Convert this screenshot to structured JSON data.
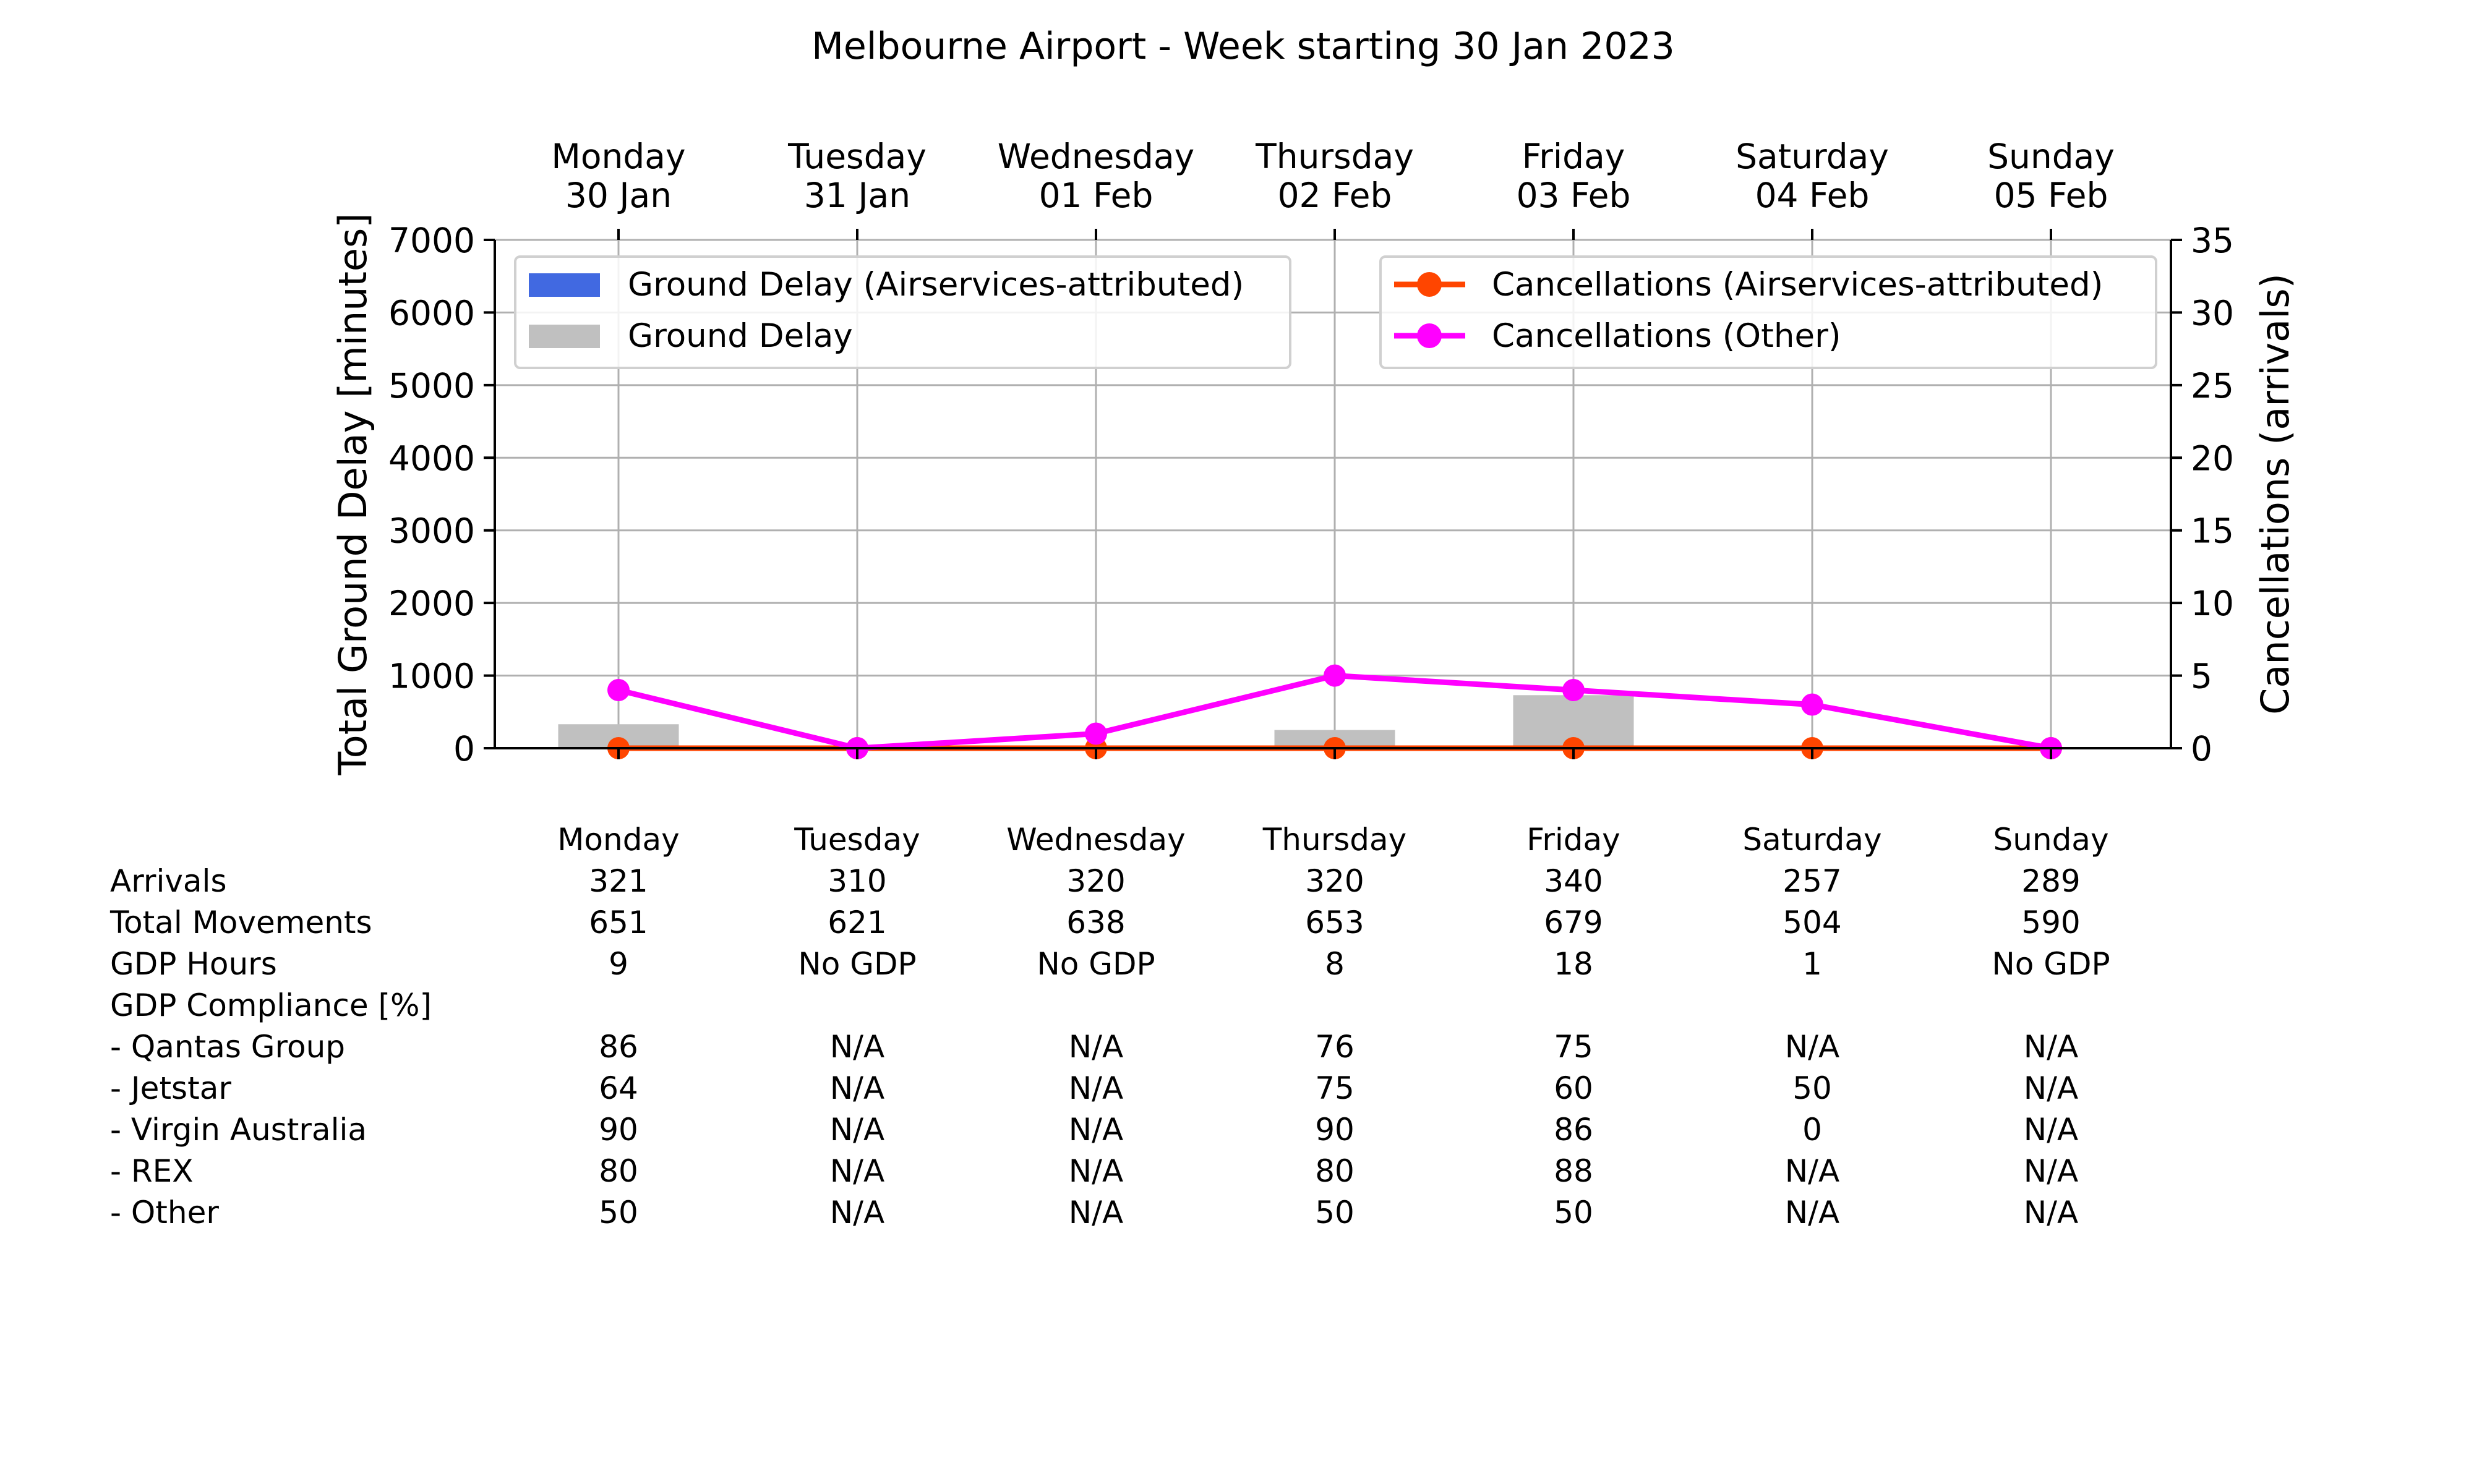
{
  "chart_data": {
    "type": "bar",
    "title": "Melbourne Airport - Week starting 30 Jan 2023",
    "day_headers": [
      [
        "Monday",
        "30 Jan"
      ],
      [
        "Tuesday",
        "31 Jan"
      ],
      [
        "Wednesday",
        "01 Feb"
      ],
      [
        "Thursday",
        "02 Feb"
      ],
      [
        "Friday",
        "03 Feb"
      ],
      [
        "Saturday",
        "04 Feb"
      ],
      [
        "Sunday",
        "05 Feb"
      ]
    ],
    "ylabel": "Total Ground Delay [minutes]",
    "ylim": [
      0,
      7000
    ],
    "yticks": [
      "0",
      "1000",
      "2000",
      "3000",
      "4000",
      "5000",
      "6000",
      "7000"
    ],
    "y2label": "Cancellations (arrivals)",
    "y2lim": [
      0,
      35
    ],
    "y2ticks": [
      "0",
      "5",
      "10",
      "15",
      "20",
      "25",
      "30",
      "35"
    ],
    "grid": true,
    "series": [
      {
        "name": "Ground Delay (Airservices-attributed)",
        "kind": "bar",
        "color": "#4169e1",
        "values": [
          0,
          0,
          0,
          0,
          0,
          0,
          0
        ]
      },
      {
        "name": "Ground Delay",
        "kind": "bar",
        "color": "#c0c0c0",
        "values": [
          330,
          0,
          0,
          250,
          730,
          0,
          0
        ]
      },
      {
        "name": "Cancellations (Airservices-attributed)",
        "kind": "line",
        "axis": "right",
        "color": "#ff4500",
        "values": [
          0,
          0,
          0,
          0,
          0,
          0,
          0
        ]
      },
      {
        "name": "Cancellations (Other)",
        "kind": "line",
        "axis": "right",
        "color": "#ff00ff",
        "values": [
          4,
          0,
          1,
          5,
          4,
          3,
          0
        ]
      }
    ],
    "legends": {
      "left": [
        "Ground Delay (Airservices-attributed)",
        "Ground Delay"
      ],
      "right": [
        "Cancellations (Airservices-attributed)",
        "Cancellations (Other)"
      ],
      "left_placement": "top-left",
      "right_placement": "top-right"
    },
    "table": {
      "columns": [
        "Monday",
        "Tuesday",
        "Wednesday",
        "Thursday",
        "Friday",
        "Saturday",
        "Sunday"
      ],
      "rows": [
        {
          "label": "Arrivals",
          "values": [
            "321",
            "310",
            "320",
            "320",
            "340",
            "257",
            "289"
          ]
        },
        {
          "label": "Total Movements",
          "values": [
            "651",
            "621",
            "638",
            "653",
            "679",
            "504",
            "590"
          ]
        },
        {
          "label": "GDP Hours",
          "values": [
            "9",
            "No GDP",
            "No GDP",
            "8",
            "18",
            "1",
            "No GDP"
          ]
        },
        {
          "label": "GDP Compliance [%]",
          "values": [
            "",
            "",
            "",
            "",
            "",
            "",
            ""
          ]
        },
        {
          "label": "  - Qantas Group",
          "values": [
            "86",
            "N/A",
            "N/A",
            "76",
            "75",
            "N/A",
            "N/A"
          ]
        },
        {
          "label": "  - Jetstar",
          "values": [
            "64",
            "N/A",
            "N/A",
            "75",
            "60",
            "50",
            "N/A"
          ]
        },
        {
          "label": "  - Virgin Australia",
          "values": [
            "90",
            "N/A",
            "N/A",
            "90",
            "86",
            "0",
            "N/A"
          ]
        },
        {
          "label": "  - REX",
          "values": [
            "80",
            "N/A",
            "N/A",
            "80",
            "88",
            "N/A",
            "N/A"
          ]
        },
        {
          "label": "  - Other",
          "values": [
            "50",
            "N/A",
            "N/A",
            "50",
            "50",
            "N/A",
            "N/A"
          ]
        }
      ]
    }
  }
}
